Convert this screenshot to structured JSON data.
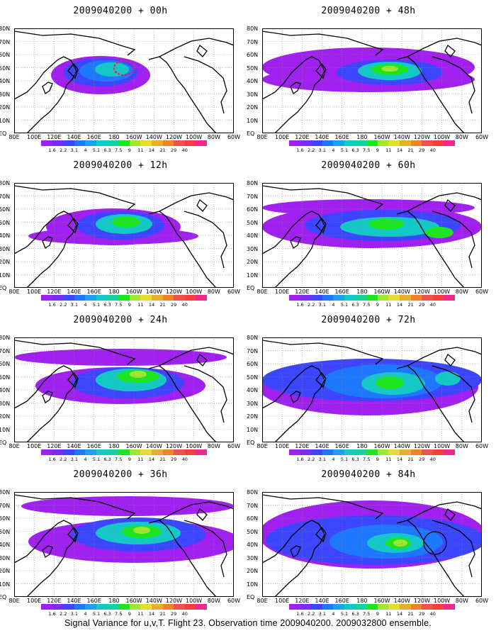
{
  "caption": "Signal Variance for u,v,T. Flight 23. Observation time 2009040200. 2009032800 ensemble.",
  "colorbar": {
    "labels": [
      "1.6",
      "2.2",
      "3.1",
      "4",
      "5.1",
      "6.3",
      "7.5",
      "9",
      "11",
      "14",
      "21",
      "29",
      "40"
    ],
    "colors": [
      "#a020f0",
      "#7a2cf5",
      "#3c46ff",
      "#1e78ff",
      "#1ea0f0",
      "#14c8c8",
      "#14d2a0",
      "#1ee61e",
      "#a0e632",
      "#e6dc32",
      "#e6af2d",
      "#f08228",
      "#f05050",
      "#fa3c3c",
      "#f0288c"
    ]
  },
  "lat_labels": [
    "80N",
    "70N",
    "60N",
    "50N",
    "40N",
    "30N",
    "20N",
    "10N",
    "EQ"
  ],
  "lon_labels": [
    "80E",
    "100E",
    "120E",
    "140E",
    "160E",
    "180",
    "160W",
    "140W",
    "120W",
    "100W",
    "80W",
    "60W"
  ],
  "panels": [
    {
      "title": "2009040200 + 00h"
    },
    {
      "title": "2009040200 + 48h"
    },
    {
      "title": "2009040200 + 12h"
    },
    {
      "title": "2009040200 + 60h"
    },
    {
      "title": "2009040200 + 24h"
    },
    {
      "title": "2009040200 + 72h"
    },
    {
      "title": "2009040200 + 36h"
    },
    {
      "title": "2009040200 + 84h"
    }
  ]
}
